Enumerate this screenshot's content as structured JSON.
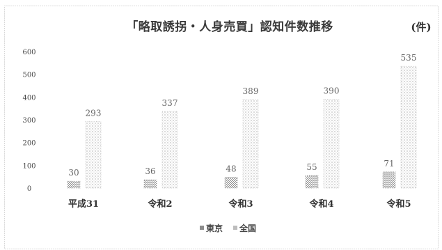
{
  "chart_data": {
    "type": "bar",
    "title": "「略取誘拐・人身売買」認知件数推移",
    "unit": "(件)",
    "categories": [
      "平成31",
      "令和2",
      "令和3",
      "令和4",
      "令和5"
    ],
    "series": [
      {
        "name": "東京",
        "color": "#8c8c8c",
        "values": [
          30,
          36,
          48,
          55,
          71
        ]
      },
      {
        "name": "全国",
        "color": "#bdbdbd",
        "values": [
          293,
          337,
          389,
          390,
          535
        ]
      }
    ],
    "yticks": [
      0,
      100,
      200,
      300,
      400,
      500,
      600
    ],
    "ylim": [
      0,
      600
    ],
    "grid": false,
    "legend": "bottom-center"
  }
}
